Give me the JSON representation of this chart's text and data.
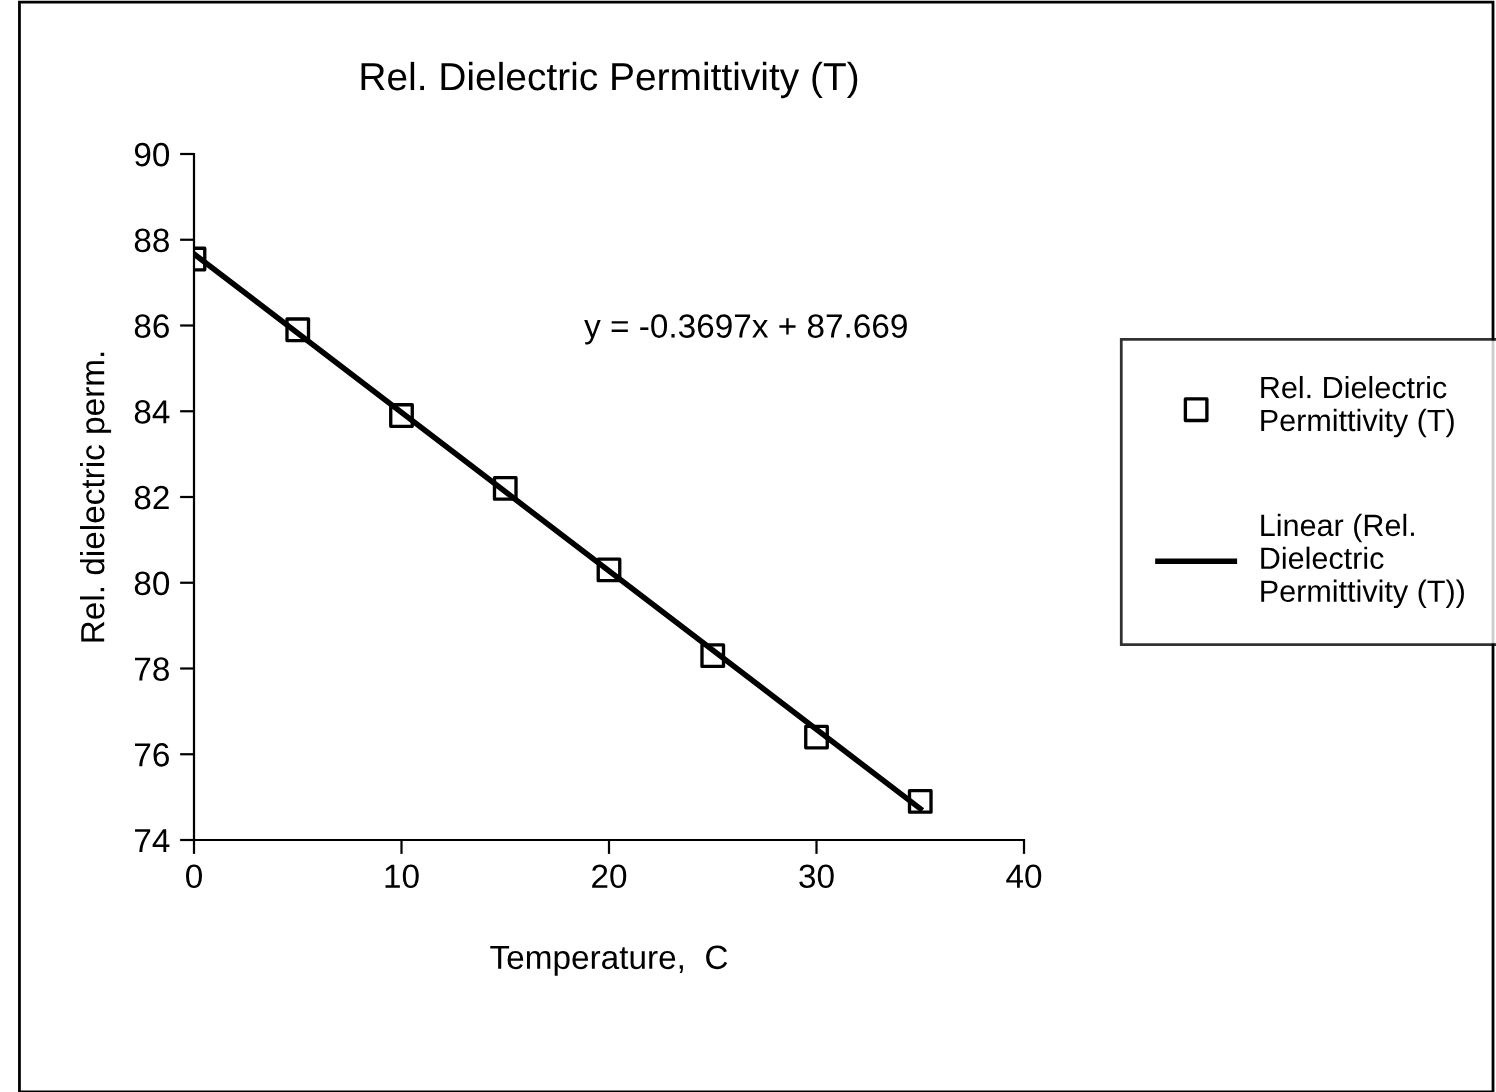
{
  "chart_data": {
    "type": "scatter",
    "title": "Rel. Dielectric Permittivity (T)",
    "xlabel": "Temperature,  C",
    "ylabel": "Rel. dielectric perm.",
    "x": [
      0,
      5,
      10,
      15,
      20,
      25,
      30,
      35
    ],
    "series": [
      {
        "name": "Rel. Dielectric\nPermittivity (T)",
        "color": "#000000",
        "values": [
          87.55,
          85.9,
          83.9,
          82.2,
          80.3,
          78.3,
          76.4,
          74.9
        ],
        "marker": "square"
      },
      {
        "name": "Linear (Rel.\nDielectric\nPermittivity (T))",
        "type": "line",
        "color": "#000000",
        "x": [
          0,
          35
        ],
        "values": [
          87.669,
          74.73
        ],
        "marker": "none",
        "line_style": "solid"
      }
    ],
    "annotations": [
      "y = -0.3697x + 87.669"
    ],
    "xlim": [
      0,
      40
    ],
    "xticks": [
      0,
      10,
      20,
      30,
      40
    ],
    "ylim": [
      74,
      90
    ],
    "yticks": [
      74,
      76,
      78,
      80,
      82,
      84,
      86,
      88,
      90
    ],
    "grid": false,
    "legend": "right"
  }
}
